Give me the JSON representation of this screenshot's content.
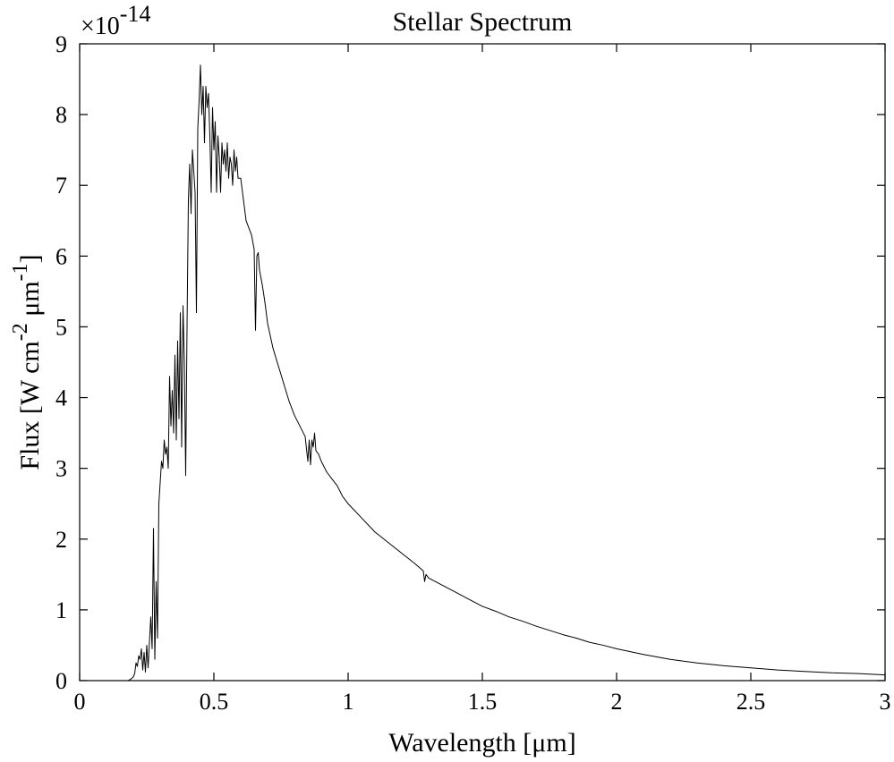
{
  "chart_data": {
    "type": "line",
    "title": "Stellar Spectrum",
    "xlabel": "Wavelength [μm]",
    "ylabel": {
      "parts": [
        "Flux [W cm",
        "-2",
        " μm",
        "-1",
        "]"
      ]
    },
    "exponent_label": {
      "base": "×10",
      "power": "-14"
    },
    "xlim": [
      0,
      3
    ],
    "ylim": [
      0,
      9
    ],
    "xticks": [
      0,
      0.5,
      1,
      1.5,
      2,
      2.5,
      3
    ],
    "yticks": [
      0,
      1,
      2,
      3,
      4,
      5,
      6,
      7,
      8,
      9
    ],
    "xtick_labels": [
      "0",
      "0.5",
      "1",
      "1.5",
      "2",
      "2.5",
      "3"
    ],
    "ytick_labels": [
      "0",
      "1",
      "2",
      "3",
      "4",
      "5",
      "6",
      "7",
      "8",
      "9"
    ],
    "grid": false,
    "series_color": "#000000",
    "x": [
      0.18,
      0.19,
      0.2,
      0.205,
      0.21,
      0.215,
      0.22,
      0.225,
      0.23,
      0.235,
      0.24,
      0.245,
      0.25,
      0.255,
      0.26,
      0.265,
      0.27,
      0.275,
      0.28,
      0.285,
      0.29,
      0.295,
      0.3,
      0.305,
      0.31,
      0.315,
      0.32,
      0.325,
      0.33,
      0.335,
      0.34,
      0.345,
      0.35,
      0.355,
      0.36,
      0.365,
      0.37,
      0.375,
      0.38,
      0.385,
      0.39,
      0.395,
      0.4,
      0.405,
      0.41,
      0.415,
      0.42,
      0.425,
      0.43,
      0.435,
      0.44,
      0.445,
      0.45,
      0.455,
      0.46,
      0.465,
      0.47,
      0.475,
      0.48,
      0.485,
      0.49,
      0.495,
      0.5,
      0.505,
      0.51,
      0.515,
      0.52,
      0.525,
      0.53,
      0.535,
      0.54,
      0.545,
      0.55,
      0.555,
      0.56,
      0.565,
      0.57,
      0.575,
      0.58,
      0.585,
      0.59,
      0.6,
      0.61,
      0.62,
      0.63,
      0.64,
      0.65,
      0.655,
      0.66,
      0.665,
      0.67,
      0.68,
      0.69,
      0.7,
      0.72,
      0.74,
      0.76,
      0.78,
      0.8,
      0.82,
      0.84,
      0.85,
      0.855,
      0.86,
      0.865,
      0.87,
      0.875,
      0.88,
      0.89,
      0.9,
      0.92,
      0.94,
      0.96,
      0.98,
      1.0,
      1.05,
      1.1,
      1.15,
      1.2,
      1.25,
      1.28,
      1.285,
      1.29,
      1.3,
      1.35,
      1.4,
      1.45,
      1.5,
      1.55,
      1.6,
      1.65,
      1.7,
      1.75,
      1.8,
      1.85,
      1.9,
      1.95,
      2.0,
      2.1,
      2.2,
      2.3,
      2.4,
      2.5,
      2.6,
      2.7,
      2.8,
      2.9,
      3.0
    ],
    "y": [
      0.0,
      0.02,
      0.05,
      0.1,
      0.25,
      0.2,
      0.35,
      0.3,
      0.45,
      0.15,
      0.4,
      0.12,
      0.5,
      0.18,
      0.55,
      0.9,
      0.45,
      2.15,
      0.3,
      1.4,
      0.6,
      2.5,
      2.8,
      3.1,
      3.0,
      3.4,
      3.2,
      3.3,
      3.0,
      4.3,
      3.6,
      4.1,
      3.5,
      4.6,
      3.4,
      4.8,
      3.7,
      5.2,
      3.3,
      5.3,
      4.5,
      2.9,
      5.0,
      6.8,
      7.3,
      6.6,
      7.5,
      7.2,
      6.9,
      5.2,
      7.8,
      8.2,
      8.7,
      8.0,
      8.4,
      7.6,
      8.4,
      8.1,
      8.3,
      7.7,
      6.9,
      8.1,
      7.5,
      7.9,
      6.9,
      7.7,
      7.4,
      6.9,
      7.6,
      7.3,
      7.5,
      7.2,
      7.6,
      7.1,
      7.4,
      7.3,
      7.0,
      7.5,
      7.2,
      7.4,
      7.1,
      7.1,
      6.8,
      6.5,
      6.4,
      6.3,
      6.1,
      4.95,
      6.0,
      6.05,
      5.8,
      5.6,
      5.35,
      5.05,
      4.7,
      4.45,
      4.2,
      3.95,
      3.75,
      3.6,
      3.45,
      3.1,
      3.4,
      3.05,
      3.4,
      3.3,
      3.5,
      3.25,
      3.2,
      3.1,
      2.95,
      2.85,
      2.75,
      2.6,
      2.5,
      2.3,
      2.1,
      1.95,
      1.8,
      1.65,
      1.55,
      1.4,
      1.5,
      1.45,
      1.35,
      1.25,
      1.15,
      1.05,
      0.98,
      0.9,
      0.84,
      0.77,
      0.71,
      0.65,
      0.6,
      0.54,
      0.5,
      0.45,
      0.37,
      0.3,
      0.25,
      0.21,
      0.18,
      0.15,
      0.13,
      0.11,
      0.1,
      0.08
    ]
  }
}
